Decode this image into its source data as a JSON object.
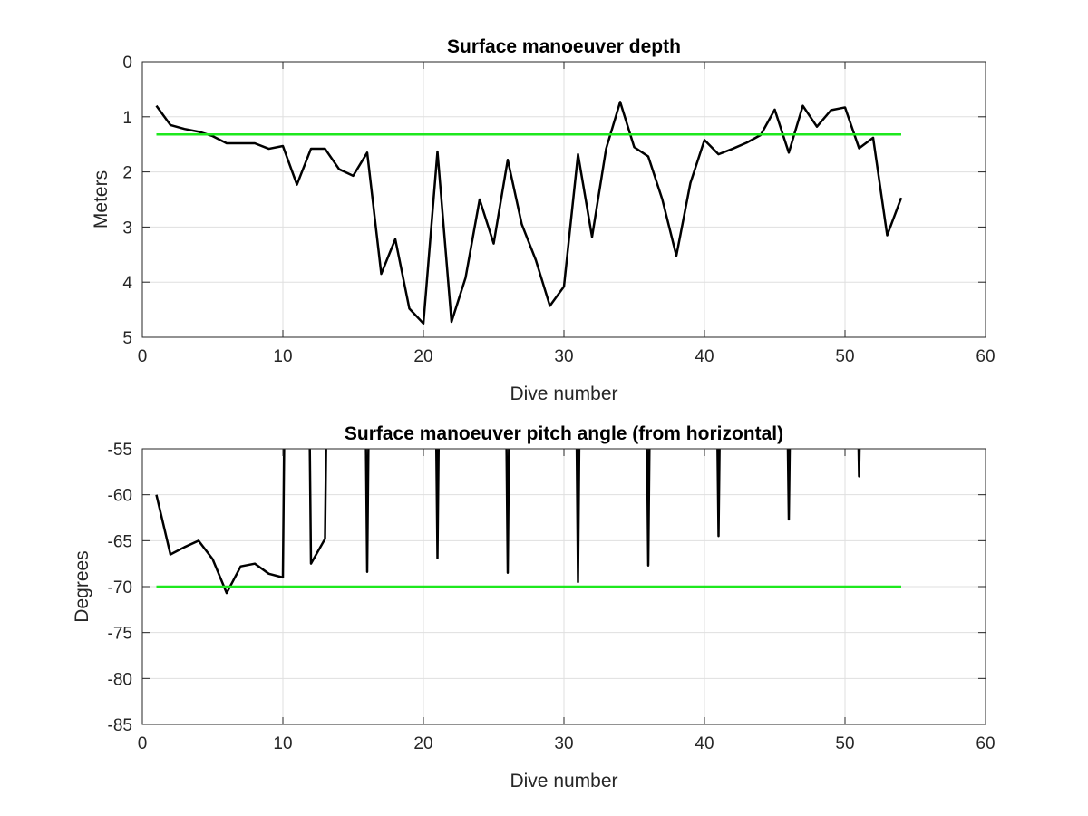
{
  "chart_data": [
    {
      "type": "line",
      "title": "Surface manoeuver depth",
      "xlabel": "Dive number",
      "ylabel": "Meters",
      "xlim": [
        0,
        60
      ],
      "ylim": [
        0,
        5
      ],
      "y_reversed": true,
      "grid": true,
      "xticks": [
        0,
        10,
        20,
        30,
        40,
        50,
        60
      ],
      "yticks": [
        0,
        1,
        2,
        3,
        4,
        5
      ],
      "colors": {
        "series": "#000000",
        "threshold": "#1ee81e"
      },
      "series": [
        {
          "x": [
            1,
            2,
            3,
            4,
            5,
            6,
            7,
            8,
            9,
            10,
            11,
            12,
            13,
            14,
            15,
            16,
            17,
            18,
            19,
            20,
            21,
            22,
            23,
            24,
            25,
            26,
            27,
            28,
            29,
            30,
            31,
            32,
            33,
            34,
            35,
            36,
            37,
            38,
            39,
            40,
            41,
            42,
            43,
            44,
            45,
            46,
            47,
            48,
            49,
            50,
            51,
            52,
            53,
            54
          ],
          "y": [
            0.8,
            1.15,
            1.22,
            1.27,
            1.35,
            1.48,
            1.48,
            1.48,
            1.58,
            1.53,
            2.23,
            1.58,
            1.58,
            1.95,
            2.07,
            1.65,
            3.85,
            3.22,
            4.48,
            4.75,
            1.63,
            4.72,
            3.92,
            2.5,
            3.3,
            1.78,
            2.95,
            3.6,
            4.43,
            4.08,
            1.68,
            3.18,
            1.58,
            0.73,
            1.55,
            1.72,
            2.5,
            3.52,
            2.2,
            1.42,
            1.68,
            1.58,
            1.47,
            1.33,
            0.87,
            1.65,
            0.8,
            1.18,
            0.88,
            0.83,
            1.57,
            1.38,
            3.15,
            2.47
          ]
        },
        {
          "x": [
            1,
            54
          ],
          "y": [
            1.32,
            1.32
          ]
        }
      ]
    },
    {
      "type": "line",
      "title": "Surface manoeuver pitch angle (from horizontal)",
      "xlabel": "Dive number",
      "ylabel": "Degrees",
      "xlim": [
        0,
        60
      ],
      "ylim": [
        -85,
        -55
      ],
      "grid": true,
      "xticks": [
        0,
        10,
        20,
        30,
        40,
        50,
        60
      ],
      "yticks": [
        -55,
        -60,
        -65,
        -70,
        -75,
        -80,
        -85
      ],
      "clipped_to_axes": true,
      "colors": {
        "series": "#000000",
        "threshold": "#1ee81e"
      },
      "series": [
        {
          "x": [
            1,
            2,
            3,
            4,
            5,
            6,
            7,
            8,
            9,
            10,
            10.15,
            11.85,
            12,
            13,
            13.15,
            15.85,
            16,
            16.15,
            20.85,
            21,
            21.15,
            25.85,
            26,
            26.15,
            30.85,
            31,
            31.15,
            35.85,
            36,
            36.15,
            40.85,
            41,
            41.15,
            45.85,
            46,
            46.15,
            50.85,
            51,
            51.15
          ],
          "y": [
            -60,
            -66.5,
            -65.7,
            -65,
            -67,
            -70.7,
            -67.8,
            -67.5,
            -68.6,
            -69,
            -45,
            -45,
            -67.5,
            -64.8,
            -45,
            -45,
            -68.4,
            -45,
            -45,
            -66.9,
            -45,
            -45,
            -68.5,
            -45,
            -45,
            -69.5,
            -45,
            -45,
            -67.7,
            -45,
            -45,
            -64.5,
            -45,
            -45,
            -62.7,
            -45,
            -45,
            -58,
            -45
          ]
        },
        {
          "x": [
            1,
            54
          ],
          "y": [
            -70,
            -70
          ]
        }
      ]
    }
  ]
}
